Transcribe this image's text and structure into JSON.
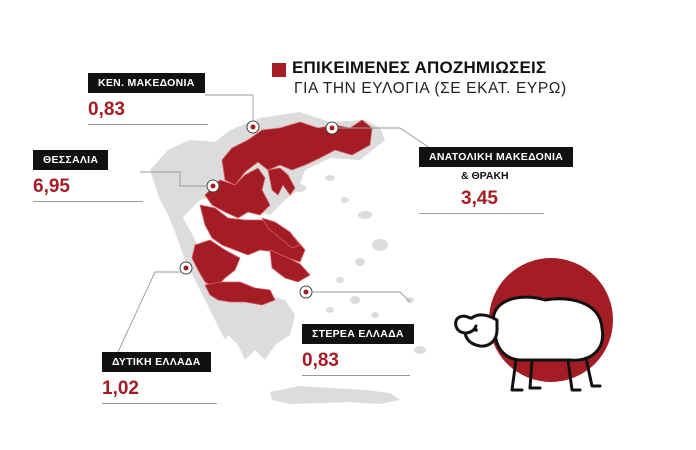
{
  "title": "ΕΠΙΚΕΙΜΕΝΕΣ ΑΠΟΖΗΜΙΩΣΕΙΣ",
  "subtitle": "ΓΙΑ ΤΗΝ ΕΥΛΟΓΙΑ (ΣΕ ΕΚΑΤ. ΕΥΡΩ)",
  "colors": {
    "accent": "#a51d24",
    "map_land": "#d9d9d9",
    "map_affected": "#a51d24",
    "label_bg": "#111111",
    "sheep_circle": "#a51d24"
  },
  "regions": {
    "kentriki_makedonia": {
      "name": "ΚΕΝ. ΜΑΚΕΔΟΝΙΑ",
      "value": "0,83"
    },
    "thessalia": {
      "name": "ΘΕΣΣΑΛΙΑ",
      "value": "6,95"
    },
    "anatoliki_makedonia": {
      "name": "ΑΝΑΤΟΛΙΚΗ ΜΑΚΕΔΟΝΙΑ",
      "name_line2": "& ΘΡΑΚΗ",
      "value": "3,45"
    },
    "dytiki_ellada": {
      "name": "ΔΥΤΙΚΗ ΕΛΛΑΔΑ",
      "value": "1,02"
    },
    "sterea_ellada": {
      "name": "ΣΤΕΡΕΑ ΕΛΛΑΔΑ",
      "value": "0,83"
    }
  },
  "icons": [
    "sheep-icon",
    "location-marker-icon"
  ]
}
